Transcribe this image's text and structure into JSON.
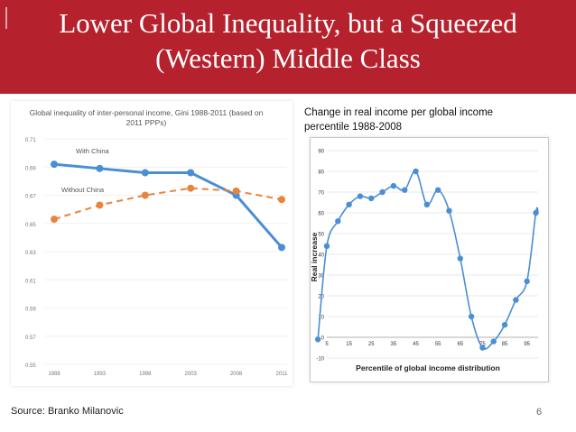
{
  "slide": {
    "title_line1": "Lower Global Inequality, but a Squeezed",
    "title_line2": "(Western) Middle Class",
    "source": "Source: Branko Milanovic",
    "page_number": "6",
    "colors": {
      "banner": "#b5222e",
      "blue": "#4a8fd4",
      "orange": "#e8843c"
    }
  },
  "chart_data": [
    {
      "type": "line",
      "title": "Global inequality of inter-personal income, Gini 1988-2011 (based on 2011 PPPs)",
      "categories": [
        "1988",
        "1993",
        "1998",
        "2003",
        "2008",
        "2011"
      ],
      "series": [
        {
          "name": "With China",
          "values": [
            0.692,
            0.689,
            0.686,
            0.686,
            0.67,
            0.633
          ],
          "style": "solid"
        },
        {
          "name": "Without China",
          "values": [
            0.653,
            0.663,
            0.67,
            0.675,
            0.673,
            0.667
          ],
          "style": "dashed"
        }
      ],
      "yticks": [
        "0.71",
        "0.69",
        "0.67",
        "0.65",
        "0.63",
        "0.61",
        "0.59",
        "0.57",
        "0.55"
      ],
      "ylim": [
        0.55,
        0.71
      ]
    },
    {
      "type": "line",
      "caption_line1": "Change in real income per global income",
      "caption_line2": "percentile 1988-2008",
      "xlabel": "Percentile of global income distribution",
      "ylabel": "Real increase",
      "x": [
        1,
        5,
        10,
        15,
        20,
        25,
        30,
        35,
        40,
        45,
        50,
        55,
        60,
        65,
        70,
        75,
        80,
        85,
        90,
        95,
        99,
        100
      ],
      "values": [
        -1,
        44,
        56,
        64,
        68,
        67,
        70,
        73,
        71,
        80,
        64,
        71,
        61,
        38,
        10,
        -5,
        -2,
        6,
        18,
        27,
        60,
        60
      ],
      "xticks": [
        "5",
        "15",
        "25",
        "35",
        "45",
        "55",
        "65",
        "75",
        "85",
        "95"
      ],
      "yticks": [
        "90",
        "80",
        "70",
        "60",
        "50",
        "40",
        "30",
        "20",
        "10",
        "0",
        "-10"
      ],
      "ylim": [
        -10,
        90
      ],
      "xlim": [
        5,
        100
      ]
    }
  ]
}
